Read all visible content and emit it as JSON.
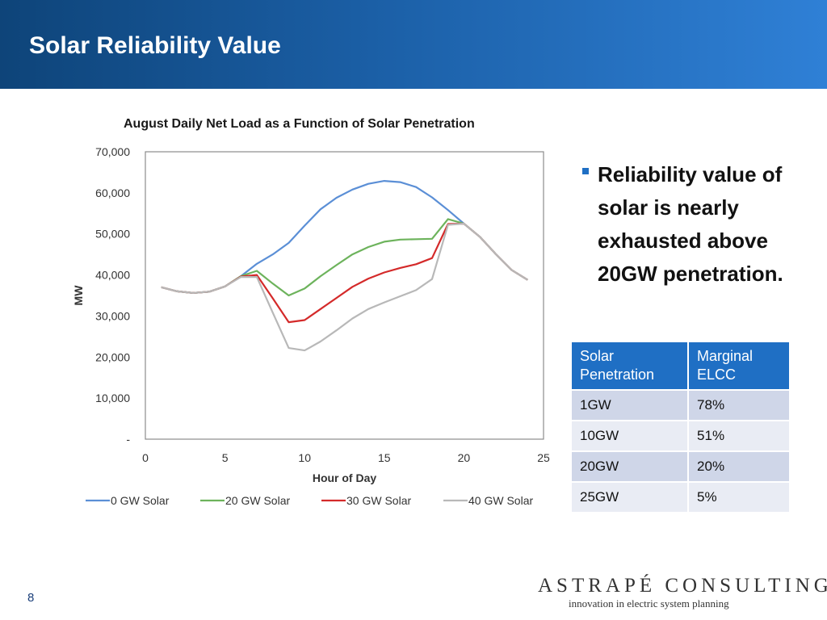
{
  "slide": {
    "title": "Solar Reliability Value",
    "page_number": "8"
  },
  "bullet": {
    "text": "Reliability value of solar is nearly exhausted above 20GW penetration."
  },
  "table": {
    "headers": [
      "Solar Penetration",
      "Marginal ELCC"
    ],
    "rows": [
      [
        "1GW",
        "78%"
      ],
      [
        "10GW",
        "51%"
      ],
      [
        "20GW",
        "20%"
      ],
      [
        "25GW",
        "5%"
      ]
    ]
  },
  "logo": {
    "main": "ASTRAPÉ CONSULTING",
    "tagline": "innovation in electric system planning"
  },
  "chart_data": {
    "type": "line",
    "title": "August Daily Net Load as a Function of Solar Penetration",
    "xlabel": "Hour of Day",
    "ylabel": "MW",
    "xlim": [
      0,
      25
    ],
    "ylim": [
      0,
      70000
    ],
    "x_ticks": [
      0,
      5,
      10,
      15,
      20,
      25
    ],
    "y_ticks": [
      0,
      10000,
      20000,
      30000,
      40000,
      50000,
      60000,
      70000
    ],
    "y_tick_labels": [
      "-",
      "10,000",
      "20,000",
      "30,000",
      "40,000",
      "50,000",
      "60,000",
      "70,000"
    ],
    "grid": false,
    "legend_position": "bottom",
    "x": [
      1,
      2,
      3,
      4,
      5,
      6,
      7,
      8,
      9,
      10,
      11,
      12,
      13,
      14,
      15,
      16,
      17,
      18,
      19,
      20,
      21,
      22,
      23,
      24
    ],
    "series": [
      {
        "name": "0 GW Solar",
        "color": "#5b8fd6",
        "values": [
          37000,
          36000,
          35600,
          35900,
          37200,
          39700,
          42700,
          45000,
          47800,
          52000,
          56000,
          58800,
          60800,
          62200,
          62900,
          62600,
          61400,
          58900,
          55800,
          52500,
          49300,
          45100,
          41200,
          38800
        ]
      },
      {
        "name": "20 GW Solar",
        "color": "#6db35c",
        "values": [
          37000,
          36000,
          35600,
          35900,
          37200,
          39700,
          41000,
          37900,
          35000,
          36700,
          39700,
          42400,
          45000,
          46800,
          48100,
          48600,
          48700,
          48800,
          53600,
          52500,
          49300,
          45100,
          41200,
          38800
        ]
      },
      {
        "name": "30 GW Solar",
        "color": "#d42a2a",
        "values": [
          37000,
          36000,
          35600,
          35900,
          37200,
          39600,
          40000,
          34300,
          28500,
          29000,
          31700,
          34400,
          37100,
          39100,
          40600,
          41700,
          42600,
          44100,
          52400,
          52500,
          49300,
          45100,
          41200,
          38800
        ]
      },
      {
        "name": "40 GW Solar",
        "color": "#b8b8b8",
        "values": [
          37000,
          36000,
          35600,
          35900,
          37200,
          39500,
          39500,
          30800,
          22200,
          21600,
          23800,
          26500,
          29400,
          31700,
          33300,
          34800,
          36300,
          39000,
          52200,
          52500,
          49300,
          45100,
          41200,
          38800
        ]
      }
    ]
  }
}
